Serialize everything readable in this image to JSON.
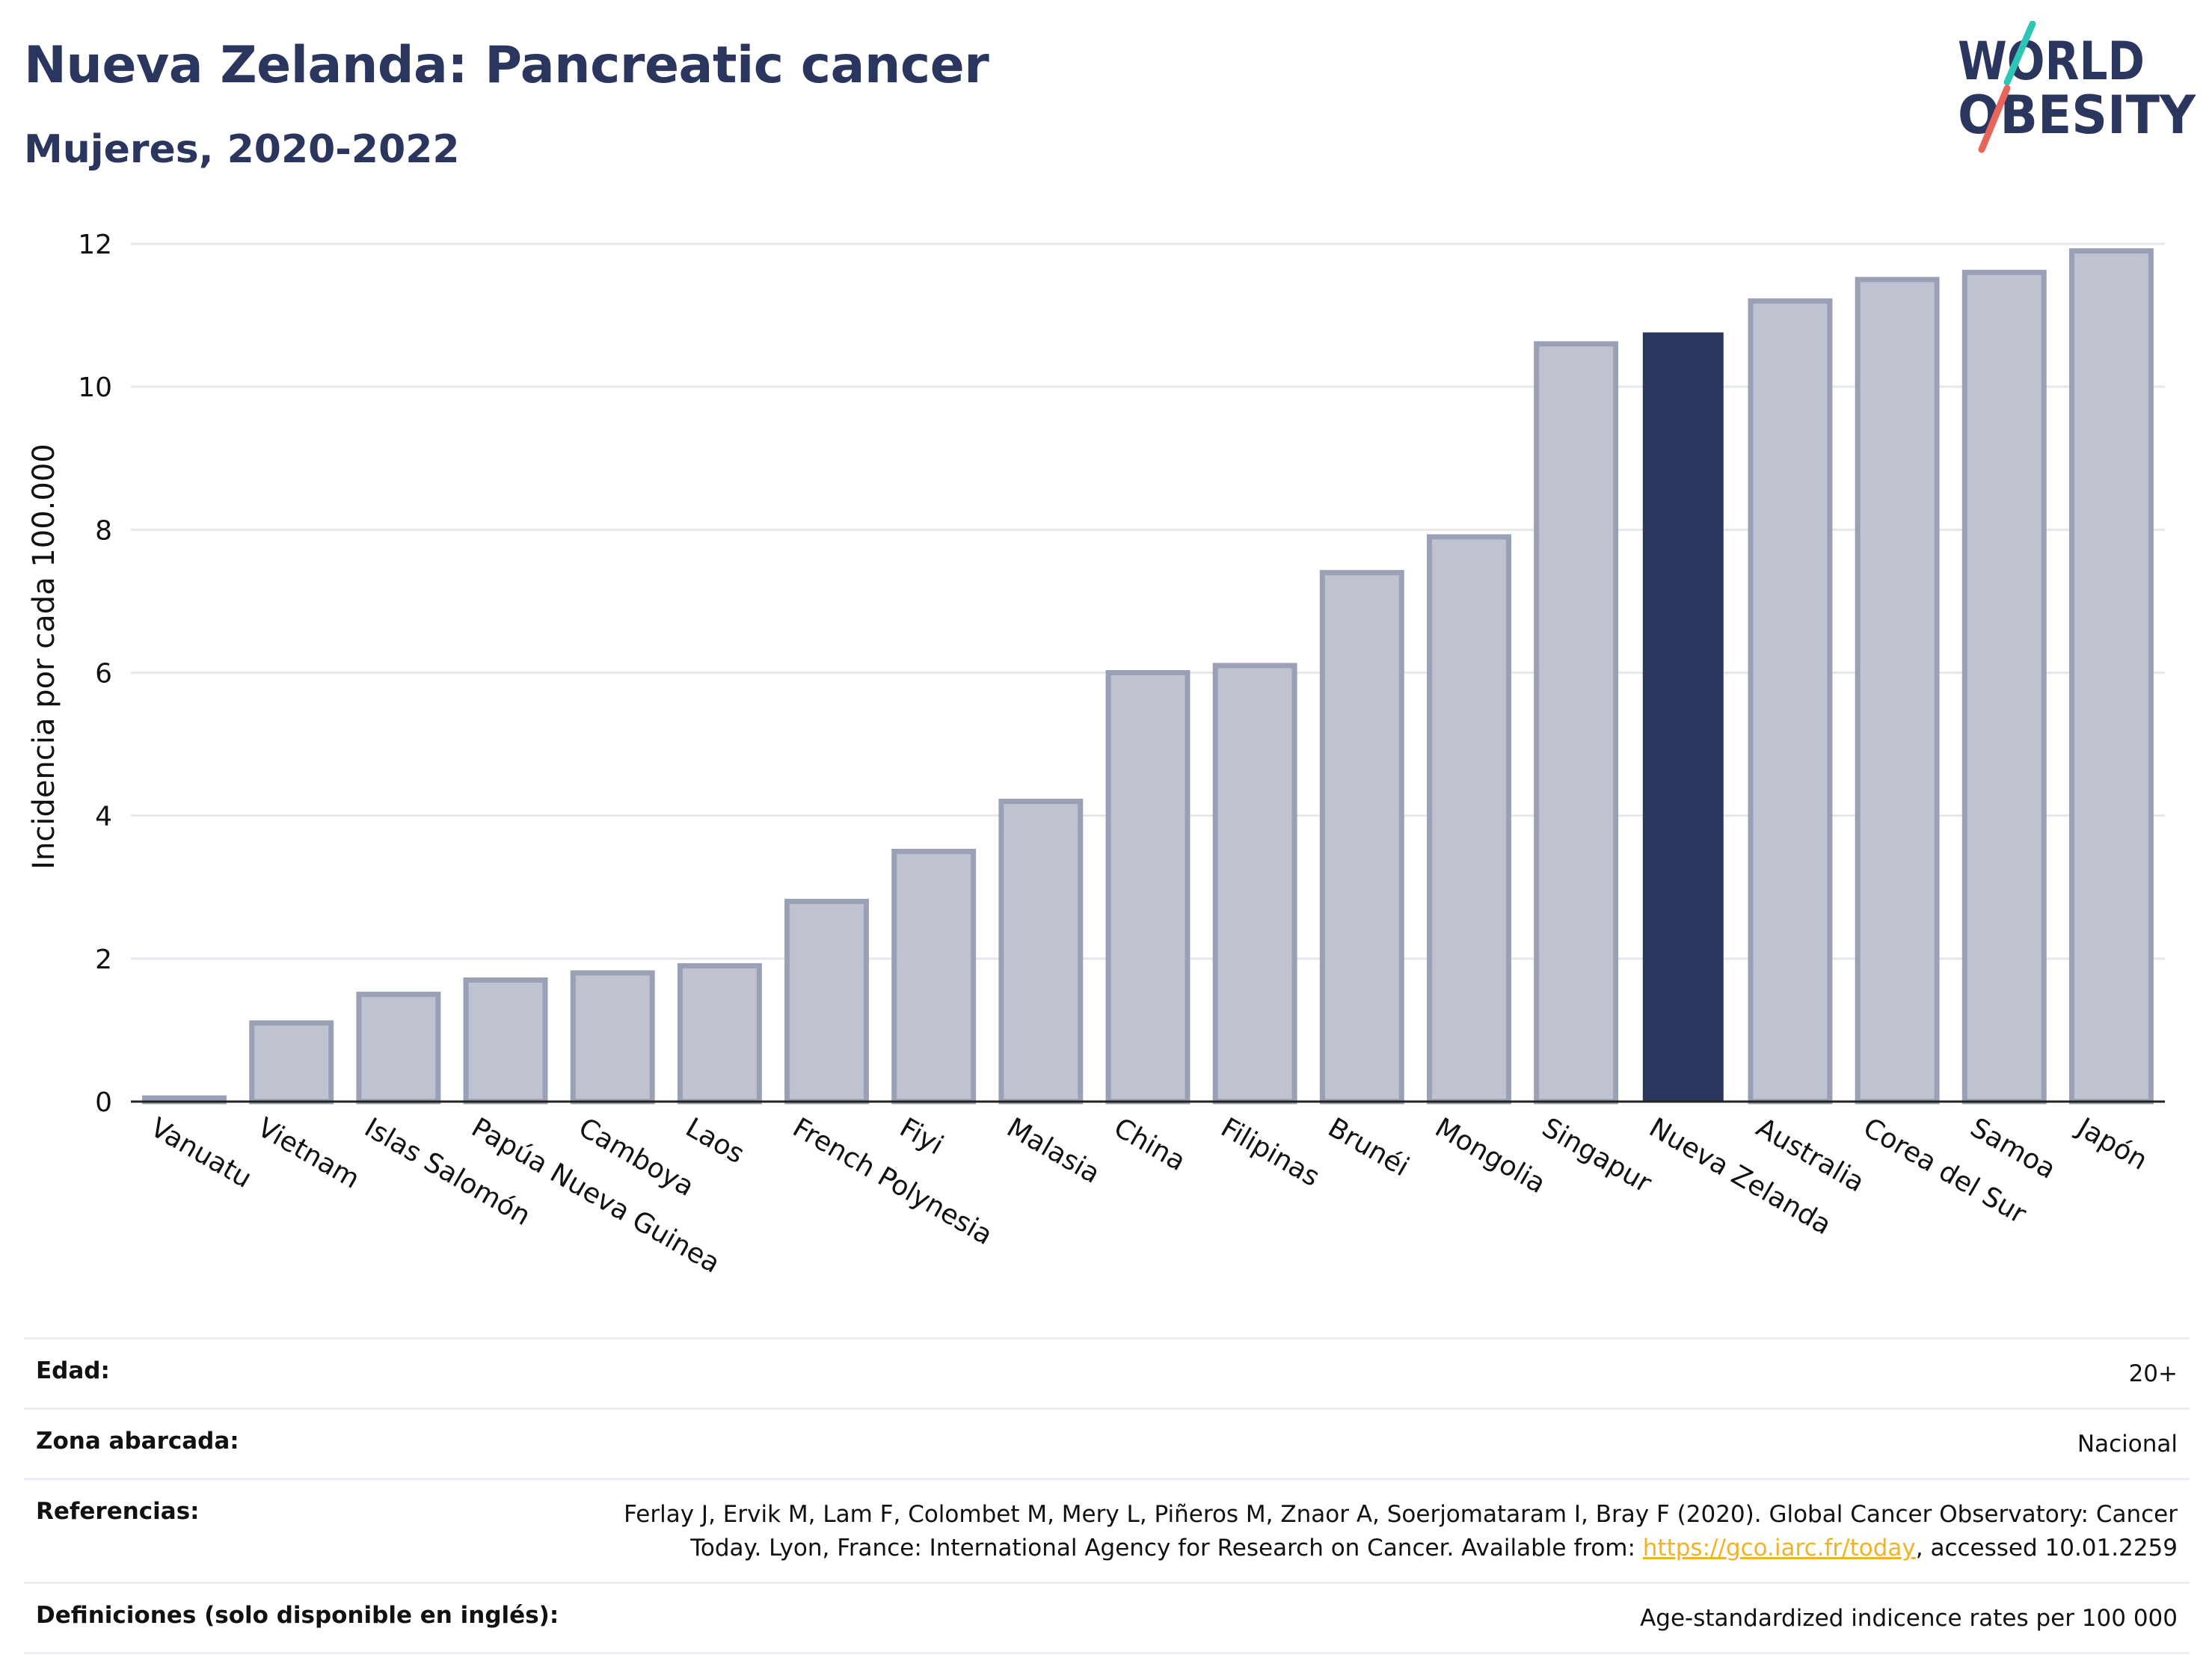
{
  "header": {
    "title": "Nueva Zelanda: Pancreatic cancer",
    "subtitle": "Mujeres, 2020-2022"
  },
  "logo": {
    "line1": "WORLD",
    "line2": "OBESITY",
    "colors": {
      "text": "#2b365f",
      "slash_top": "#2ec4b6",
      "slash_bottom": "#e8655a"
    }
  },
  "colors": {
    "bar_default": "#bfc3d0",
    "bar_edge": "#9aa0b5",
    "bar_highlight": "#2b365f",
    "grid": "#e5e7ec",
    "axis": "#222222"
  },
  "chart_data": {
    "type": "bar",
    "title": "",
    "xlabel": "",
    "ylabel": "Incidencia por cada 100.000",
    "ylim": [
      0,
      12
    ],
    "yticks": [
      0,
      2,
      4,
      6,
      8,
      10,
      12
    ],
    "grid": true,
    "highlight": "Nueva Zelanda",
    "categories": [
      "Vanuatu",
      "Vietnam",
      "Islas Salomón",
      "Papúa Nueva Guinea",
      "Camboya",
      "Laos",
      "French Polynesia",
      "Fiyi",
      "Malasia",
      "China",
      "Filipinas",
      "Brunéi",
      "Mongolia",
      "Singapur",
      "Nueva Zelanda",
      "Australia",
      "Corea del Sur",
      "Samoa",
      "Japón"
    ],
    "values": [
      0.05,
      1.1,
      1.5,
      1.7,
      1.8,
      1.9,
      2.8,
      3.5,
      4.2,
      6.0,
      6.1,
      7.4,
      7.9,
      10.6,
      10.75,
      11.2,
      11.5,
      11.6,
      11.9
    ]
  },
  "footer": {
    "rows": [
      {
        "label": "Edad:",
        "value": "20+"
      },
      {
        "label": "Zona abarcada:",
        "value": "Nacional"
      },
      {
        "label": "Referencias:",
        "value_before": "Ferlay J, Ervik M, Lam F, Colombet M, Mery L, Piñeros M, Znaor A, Soerjomataram I, Bray F (2020). Global Cancer Observatory: Cancer Today. Lyon, France: International Agency for Research on Cancer. Available from: ",
        "link": "https://gco.iarc.fr/today",
        "value_after": ", accessed 10.01.2259"
      },
      {
        "label": "Definiciones (solo disponible en inglés):",
        "value": "Age-standardized indicence rates per 100 000"
      }
    ]
  }
}
